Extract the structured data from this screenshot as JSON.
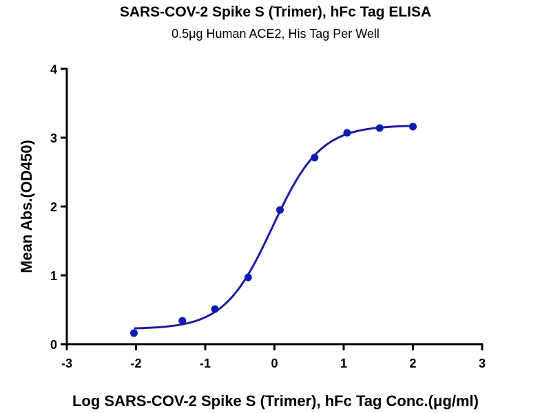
{
  "chart_data": {
    "type": "scatter",
    "title": "SARS-COV-2 Spike S (Trimer), hFc Tag ELISA",
    "subtitle": "0.5μg Human ACE2, His Tag Per Well",
    "xlabel": "Log SARS-COV-2 Spike S (Trimer), hFc Tag Conc.(μg/ml)",
    "ylabel": "Mean Abs.(OD450)",
    "xlim": [
      -3,
      3
    ],
    "ylim": [
      0,
      4
    ],
    "xticks": [
      "-3",
      "-2",
      "-1",
      "0",
      "1",
      "2",
      "3"
    ],
    "yticks": [
      "0",
      "1",
      "2",
      "3",
      "4"
    ],
    "grid": false,
    "color": "#1c1ca0",
    "series": [
      {
        "x": [
          -2.03,
          -1.33,
          -0.86,
          -0.38,
          0.08,
          0.58,
          1.05,
          1.52,
          2.0
        ],
        "y": [
          0.16,
          0.34,
          0.51,
          0.97,
          1.95,
          2.71,
          3.07,
          3.14,
          3.16
        ],
        "fit": {
          "model": "4PL",
          "bottom": 0.22,
          "top": 3.18,
          "logEC50": -0.03,
          "hill": 1.25,
          "range": [
            -2.03,
            2.0
          ]
        }
      }
    ]
  }
}
